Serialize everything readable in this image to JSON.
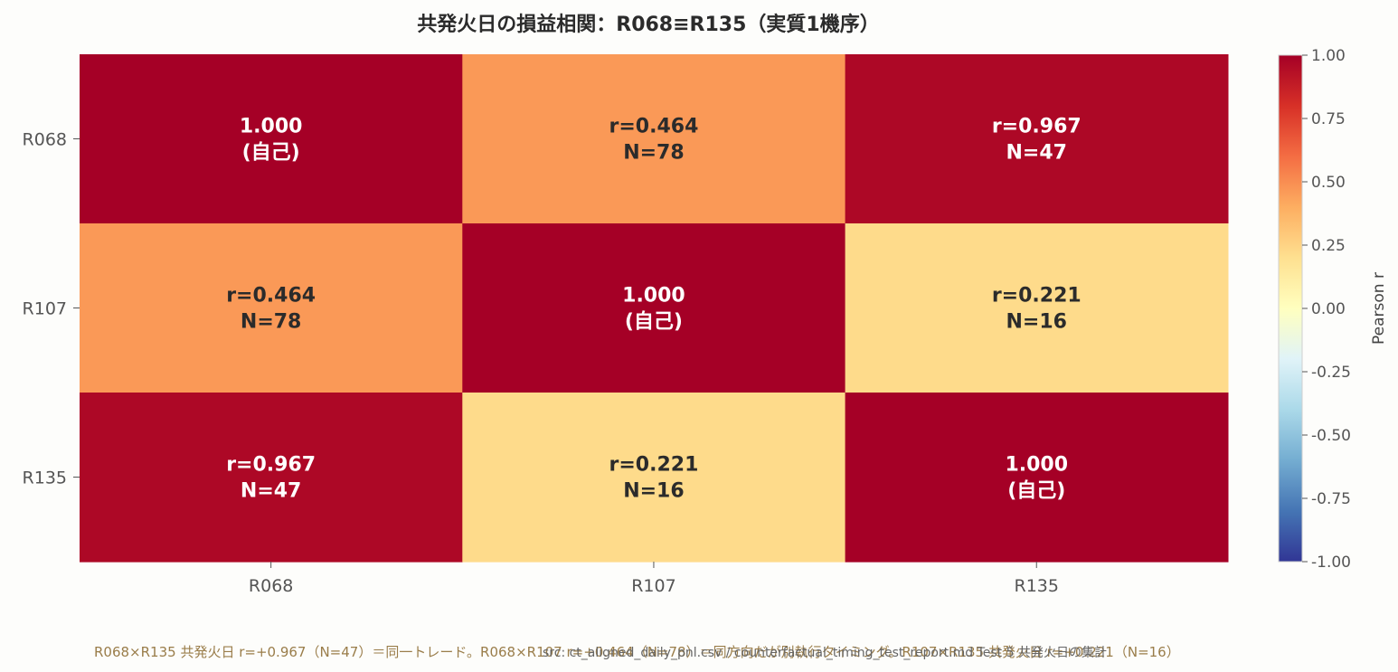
{
  "chart_data": {
    "type": "heatmap",
    "title": "共発火日の損益相関：R068≡R135（実質1機序）",
    "rows": [
      "R068",
      "R107",
      "R135"
    ],
    "cols": [
      "R068",
      "R107",
      "R135"
    ],
    "values": [
      [
        1.0,
        0.464,
        0.967
      ],
      [
        0.464,
        1.0,
        0.221
      ],
      [
        0.967,
        0.221,
        1.0
      ]
    ],
    "cell_text": [
      [
        [
          "1.000",
          "(自己)"
        ],
        [
          "r=0.464",
          "N=78"
        ],
        [
          "r=0.967",
          "N=47"
        ]
      ],
      [
        [
          "r=0.464",
          "N=78"
        ],
        [
          "1.000",
          "(自己)"
        ],
        [
          "r=0.221",
          "N=16"
        ]
      ],
      [
        [
          "r=0.967",
          "N=47"
        ],
        [
          "r=0.221",
          "N=16"
        ],
        [
          "1.000",
          "(自己)"
        ]
      ]
    ],
    "colorbar": {
      "label": "Pearson r",
      "range": [
        -1.0,
        1.0
      ],
      "ticks": [
        "1.00",
        "0.75",
        "0.50",
        "0.25",
        "0.00",
        "-0.25",
        "-0.50",
        "-0.75",
        "-1.00"
      ]
    },
    "colormap": "RdYlBu_r"
  },
  "footnote": "R068×R135 共発火日 r=+0.967（N=47）＝同一トレード。R068×R107 r=+0.464（N=78）＝同方向だが別執行タイミング。R107×R135 共発火日 r=+0.221（N=16）",
  "source_note": "src: ct_aligned_daily_pnl.csv / counterfactual_timing_test_report.md Test 5 共発火日の集計"
}
